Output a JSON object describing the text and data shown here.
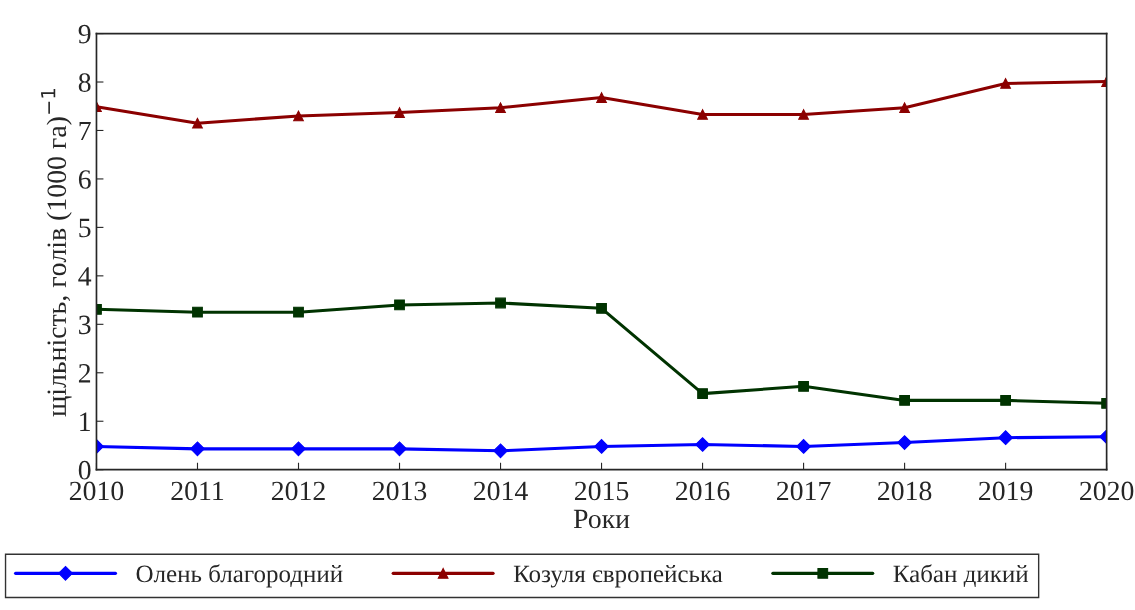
{
  "chart_data": {
    "type": "line",
    "xlabel": "Роки",
    "ylabel": "щільність, голів (1000 га)$^{−1}$",
    "x": [
      2010,
      2011,
      2012,
      2013,
      2014,
      2015,
      2016,
      2017,
      2018,
      2019,
      2020
    ],
    "xlim": [
      2010,
      2020
    ],
    "xticks": [
      2010,
      2011,
      2012,
      2013,
      2014,
      2015,
      2016,
      2017,
      2018,
      2019,
      2020
    ],
    "ylim": [
      0,
      9
    ],
    "yticks": [
      0,
      1,
      2,
      3,
      4,
      5,
      6,
      7,
      8,
      9
    ],
    "grid": false,
    "legend": "bottom",
    "line_style": "solid",
    "series": [
      {
        "name": "Олень благородний",
        "color": "#0000ff",
        "marker": "diamond",
        "values": [
          0.48,
          0.43,
          0.43,
          0.43,
          0.39,
          0.48,
          0.52,
          0.48,
          0.56,
          0.66,
          0.68
        ]
      },
      {
        "name": "Козуля європейська",
        "color": "#8b0000",
        "marker": "triangle",
        "values": [
          7.49,
          7.15,
          7.3,
          7.37,
          7.47,
          7.68,
          7.33,
          7.33,
          7.47,
          7.97,
          8.01
        ]
      },
      {
        "name": "Кабан дикий",
        "color": "#003300",
        "marker": "square",
        "values": [
          3.31,
          3.25,
          3.25,
          3.4,
          3.44,
          3.33,
          1.57,
          1.72,
          1.43,
          1.43,
          1.37
        ]
      }
    ]
  }
}
